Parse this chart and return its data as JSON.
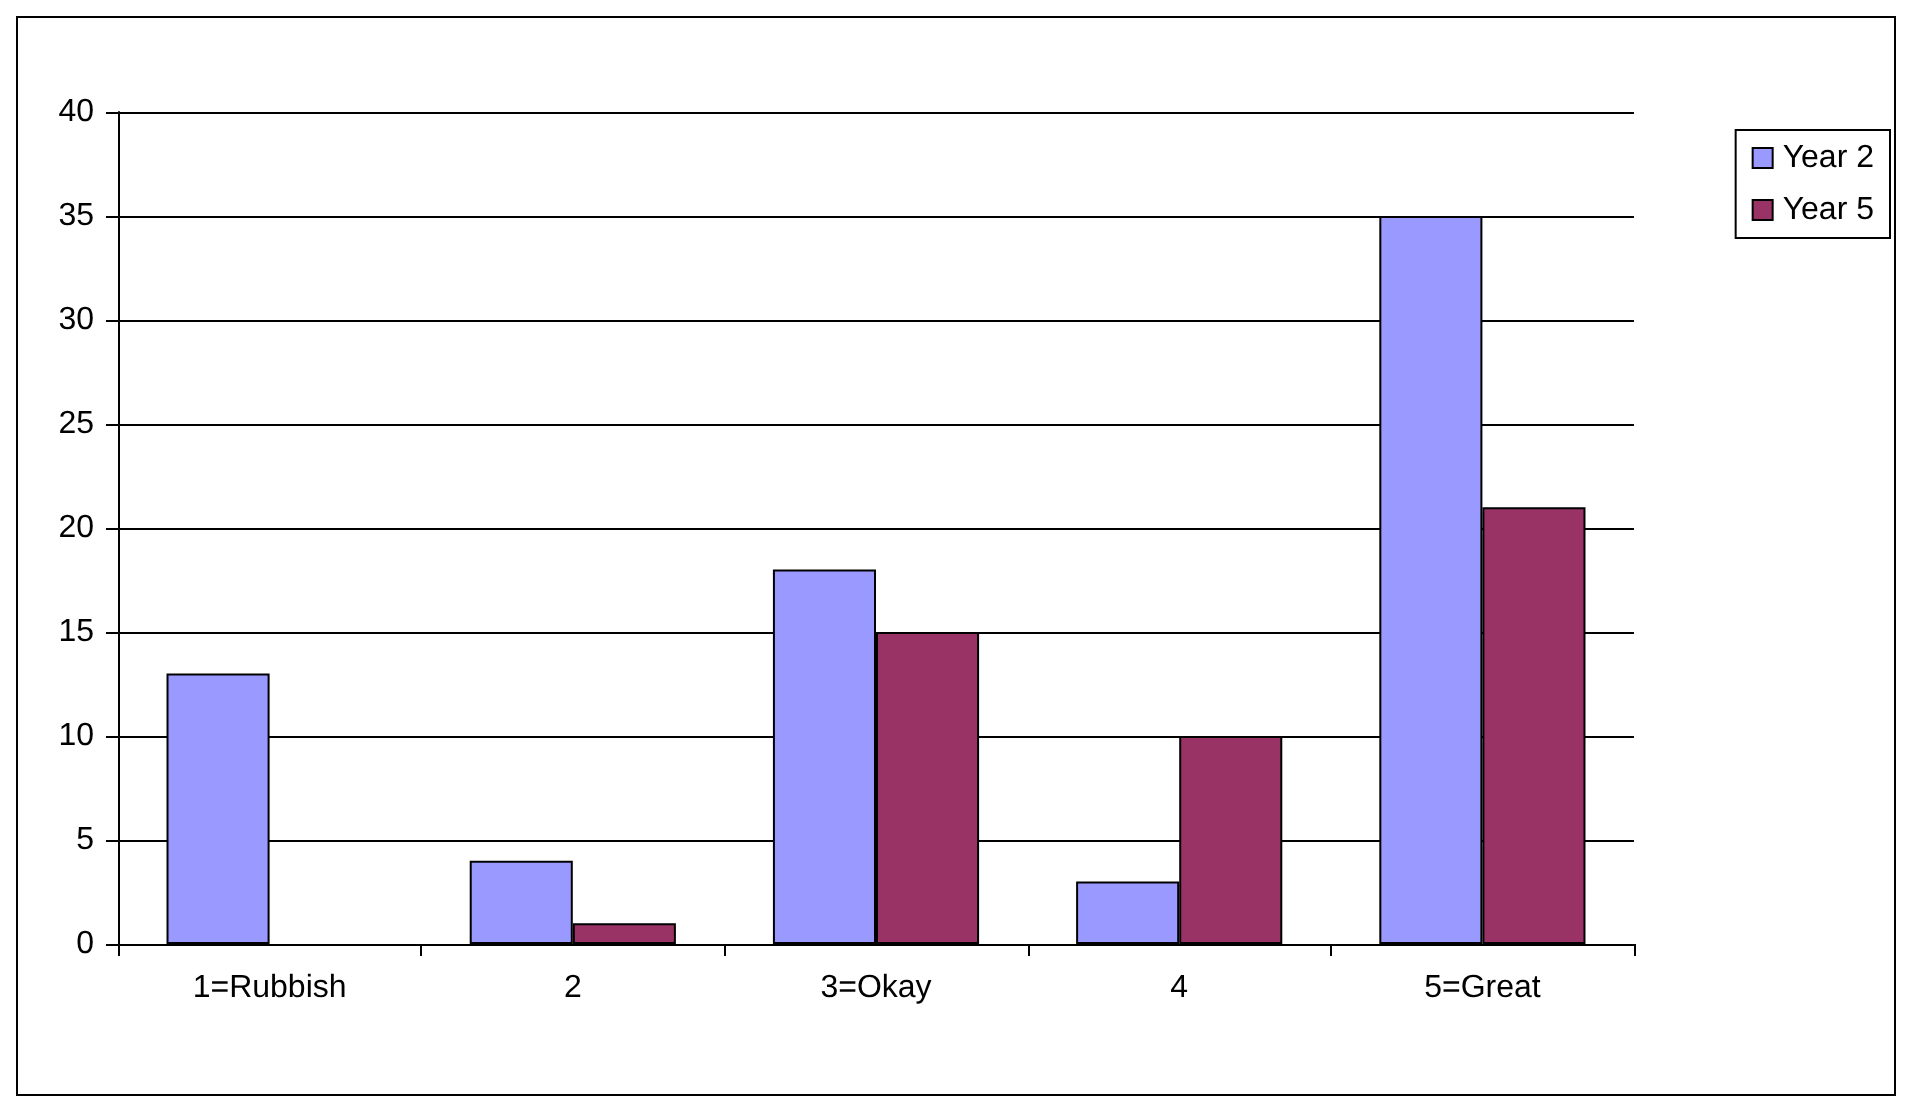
{
  "chart_data": {
    "type": "bar",
    "categories": [
      "1=Rubbish",
      "2",
      "3=Okay",
      "4",
      "5=Great"
    ],
    "series": [
      {
        "name": "Year 2",
        "color": "#9999ff",
        "values": [
          13,
          4,
          18,
          3,
          35
        ]
      },
      {
        "name": "Year 5",
        "color": "#993366",
        "values": [
          0,
          1,
          15,
          10,
          21
        ]
      }
    ],
    "ylim": [
      0,
      40
    ],
    "yticks": [
      0,
      5,
      10,
      15,
      20,
      25,
      30,
      35,
      40
    ],
    "grid": "y",
    "legend": "top right"
  }
}
